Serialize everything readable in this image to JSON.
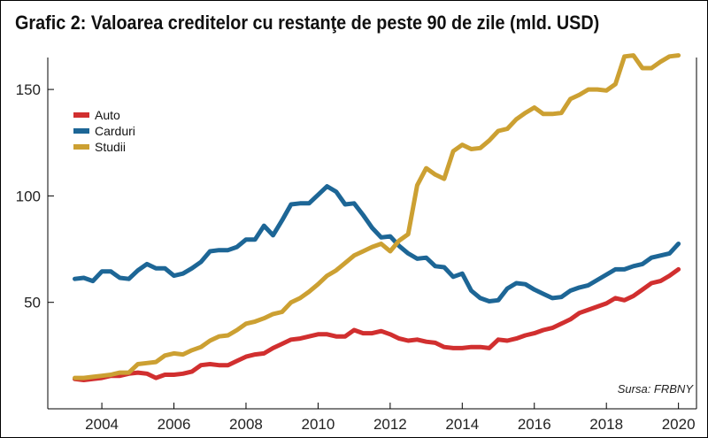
{
  "chart_data": {
    "type": "line",
    "title": "Grafic 2: Valoarea creditelor cu restanţe de peste 90 de zile (mld. USD)",
    "source": "Sursa: FRBNY",
    "xlim": [
      2002.5,
      2020.5
    ],
    "ylim": [
      0,
      165
    ],
    "yticks": [
      50,
      100,
      150
    ],
    "xticks": [
      2004,
      2006,
      2008,
      2010,
      2012,
      2014,
      2016,
      2018,
      2020
    ],
    "grid": false,
    "legend_position": "top-left",
    "series": [
      {
        "name": "Auto",
        "color": "#d12f2f",
        "x": [
          2003.25,
          2003.5,
          2003.75,
          2004.0,
          2004.25,
          2004.5,
          2004.75,
          2005.0,
          2005.25,
          2005.5,
          2005.75,
          2006.0,
          2006.25,
          2006.5,
          2006.75,
          2007.0,
          2007.25,
          2007.5,
          2007.75,
          2008.0,
          2008.25,
          2008.5,
          2008.75,
          2009.0,
          2009.25,
          2009.5,
          2009.75,
          2010.0,
          2010.25,
          2010.5,
          2010.75,
          2011.0,
          2011.25,
          2011.5,
          2011.75,
          2012.0,
          2012.25,
          2012.5,
          2012.75,
          2013.0,
          2013.25,
          2013.5,
          2013.75,
          2014.0,
          2014.25,
          2014.5,
          2014.75,
          2015.0,
          2015.25,
          2015.5,
          2015.75,
          2016.0,
          2016.25,
          2016.5,
          2016.75,
          2017.0,
          2017.25,
          2017.5,
          2017.75,
          2018.0,
          2018.25,
          2018.5,
          2018.75,
          2019.0,
          2019.25,
          2019.5,
          2019.75,
          2020.0
        ],
        "values": [
          14,
          13.5,
          14,
          14.5,
          15.5,
          15.5,
          16.5,
          17,
          16.5,
          14.5,
          16,
          16,
          16.5,
          17.5,
          20.5,
          21,
          20.5,
          20.5,
          22.5,
          24.5,
          25.5,
          26,
          28.5,
          30.5,
          32.5,
          33,
          34,
          35,
          35,
          34,
          34,
          37,
          35.5,
          35.5,
          36.5,
          35,
          33,
          32,
          32.5,
          31.5,
          31,
          29,
          28.5,
          28.5,
          29,
          29,
          28.5,
          32.5,
          32,
          33,
          34.5,
          35.5,
          37,
          38,
          40,
          42,
          45,
          46.5,
          48,
          49.5,
          52,
          51,
          53,
          56,
          59,
          60,
          62.5,
          65.5
        ]
      },
      {
        "name": "Carduri",
        "color": "#1d6696",
        "x": [
          2003.25,
          2003.5,
          2003.75,
          2004.0,
          2004.25,
          2004.5,
          2004.75,
          2005.0,
          2005.25,
          2005.5,
          2005.75,
          2006.0,
          2006.25,
          2006.5,
          2006.75,
          2007.0,
          2007.25,
          2007.5,
          2007.75,
          2008.0,
          2008.25,
          2008.5,
          2008.75,
          2009.0,
          2009.25,
          2009.5,
          2009.75,
          2010.0,
          2010.25,
          2010.5,
          2010.75,
          2011.0,
          2011.25,
          2011.5,
          2011.75,
          2012.0,
          2012.25,
          2012.5,
          2012.75,
          2013.0,
          2013.25,
          2013.5,
          2013.75,
          2014.0,
          2014.25,
          2014.5,
          2014.75,
          2015.0,
          2015.25,
          2015.5,
          2015.75,
          2016.0,
          2016.25,
          2016.5,
          2016.75,
          2017.0,
          2017.25,
          2017.5,
          2017.75,
          2018.0,
          2018.25,
          2018.5,
          2018.75,
          2019.0,
          2019.25,
          2019.5,
          2019.75,
          2020.0
        ],
        "values": [
          61,
          61.5,
          60,
          64.5,
          64.5,
          61.5,
          61,
          65,
          68,
          66,
          66,
          62.5,
          63.5,
          66,
          69,
          74,
          74.5,
          74.5,
          76,
          79.5,
          79.5,
          86,
          81.5,
          88.5,
          96,
          96.5,
          96.5,
          100.5,
          104.5,
          102,
          96,
          96.5,
          91,
          85,
          80.5,
          81,
          76.5,
          73,
          70.5,
          71,
          67,
          66.5,
          62,
          63.5,
          55.5,
          52,
          50.5,
          51,
          56.5,
          59,
          58.5,
          56,
          54,
          52,
          52.5,
          55.5,
          57,
          58,
          60.5,
          63,
          65.5,
          65.5,
          67,
          68,
          71,
          72,
          73,
          77.5
        ]
      },
      {
        "name": "Studii",
        "color": "#cca032",
        "x": [
          2003.25,
          2003.5,
          2003.75,
          2004.0,
          2004.25,
          2004.5,
          2004.75,
          2005.0,
          2005.25,
          2005.5,
          2005.75,
          2006.0,
          2006.25,
          2006.5,
          2006.75,
          2007.0,
          2007.25,
          2007.5,
          2007.75,
          2008.0,
          2008.25,
          2008.5,
          2008.75,
          2009.0,
          2009.25,
          2009.5,
          2009.75,
          2010.0,
          2010.25,
          2010.5,
          2010.75,
          2011.0,
          2011.25,
          2011.5,
          2011.75,
          2012.0,
          2012.25,
          2012.5,
          2012.75,
          2013.0,
          2013.25,
          2013.5,
          2013.75,
          2014.0,
          2014.25,
          2014.5,
          2014.75,
          2015.0,
          2015.25,
          2015.5,
          2015.75,
          2016.0,
          2016.25,
          2016.5,
          2016.75,
          2017.0,
          2017.25,
          2017.5,
          2017.75,
          2018.0,
          2018.25,
          2018.5,
          2018.75,
          2019.0,
          2019.25,
          2019.5,
          2019.75,
          2020.0
        ],
        "values": [
          14.5,
          14.5,
          15,
          15.5,
          16,
          17,
          17,
          21,
          21.5,
          22,
          25,
          26,
          25.5,
          27.5,
          29,
          32,
          34,
          34.5,
          37,
          40,
          41,
          42.5,
          44.5,
          45.5,
          50,
          52,
          55,
          58.5,
          62.5,
          65,
          68.5,
          72,
          74,
          76,
          77.5,
          74,
          79,
          82,
          105,
          113,
          110,
          108,
          121,
          124,
          122,
          122.5,
          126,
          130.5,
          131.5,
          136,
          139,
          141.5,
          138.5,
          138.5,
          139,
          145.5,
          147.5,
          150,
          150,
          149.5,
          152.5,
          165.5,
          166,
          160,
          160,
          163,
          165.5,
          166
        ]
      }
    ]
  }
}
